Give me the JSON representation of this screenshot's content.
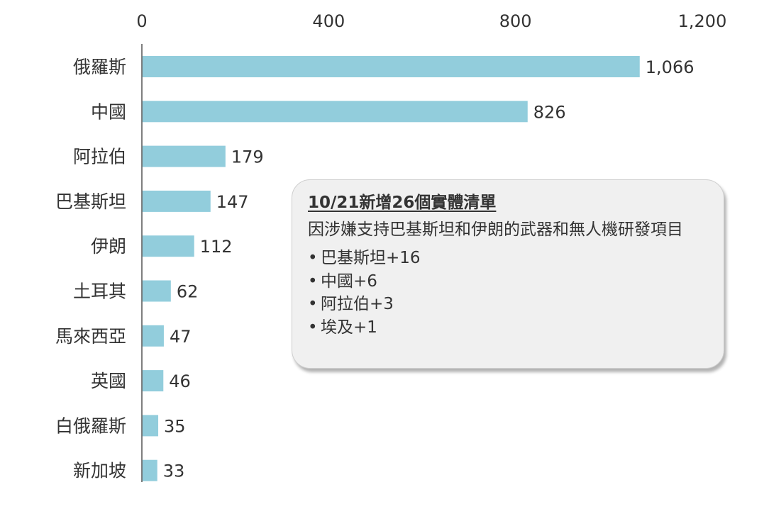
{
  "chart_data": {
    "type": "bar",
    "orientation": "horizontal",
    "categories": [
      "俄羅斯",
      "中國",
      "阿拉伯",
      "巴基斯坦",
      "伊朗",
      "土耳其",
      "馬來西亞",
      "英國",
      "白俄羅斯",
      "新加坡"
    ],
    "values": [
      1066,
      826,
      179,
      147,
      112,
      62,
      47,
      46,
      35,
      33
    ],
    "value_labels": [
      "1,066",
      "826",
      "179",
      "147",
      "112",
      "62",
      "47",
      "46",
      "35",
      "33"
    ],
    "xlim": [
      0,
      1200
    ],
    "x_ticks": [
      0,
      400,
      800,
      1200
    ],
    "x_tick_labels": [
      "0",
      "400",
      "800",
      "1,200"
    ],
    "x_axis_position": "top",
    "grid": false,
    "legend": "none",
    "bar_color": "#92CDDC",
    "title": "",
    "xlabel": "",
    "ylabel": ""
  },
  "callout": {
    "title": "10/21新增26個實體清單",
    "description": "因涉嫌支持巴基斯坦和伊朗的武器和無人機研發項目",
    "bullet_symbol": "•",
    "items": [
      "巴基斯坦+16",
      "中國+6",
      "阿拉伯+3",
      "埃及+1"
    ],
    "background_color": "#F0F0F0"
  }
}
